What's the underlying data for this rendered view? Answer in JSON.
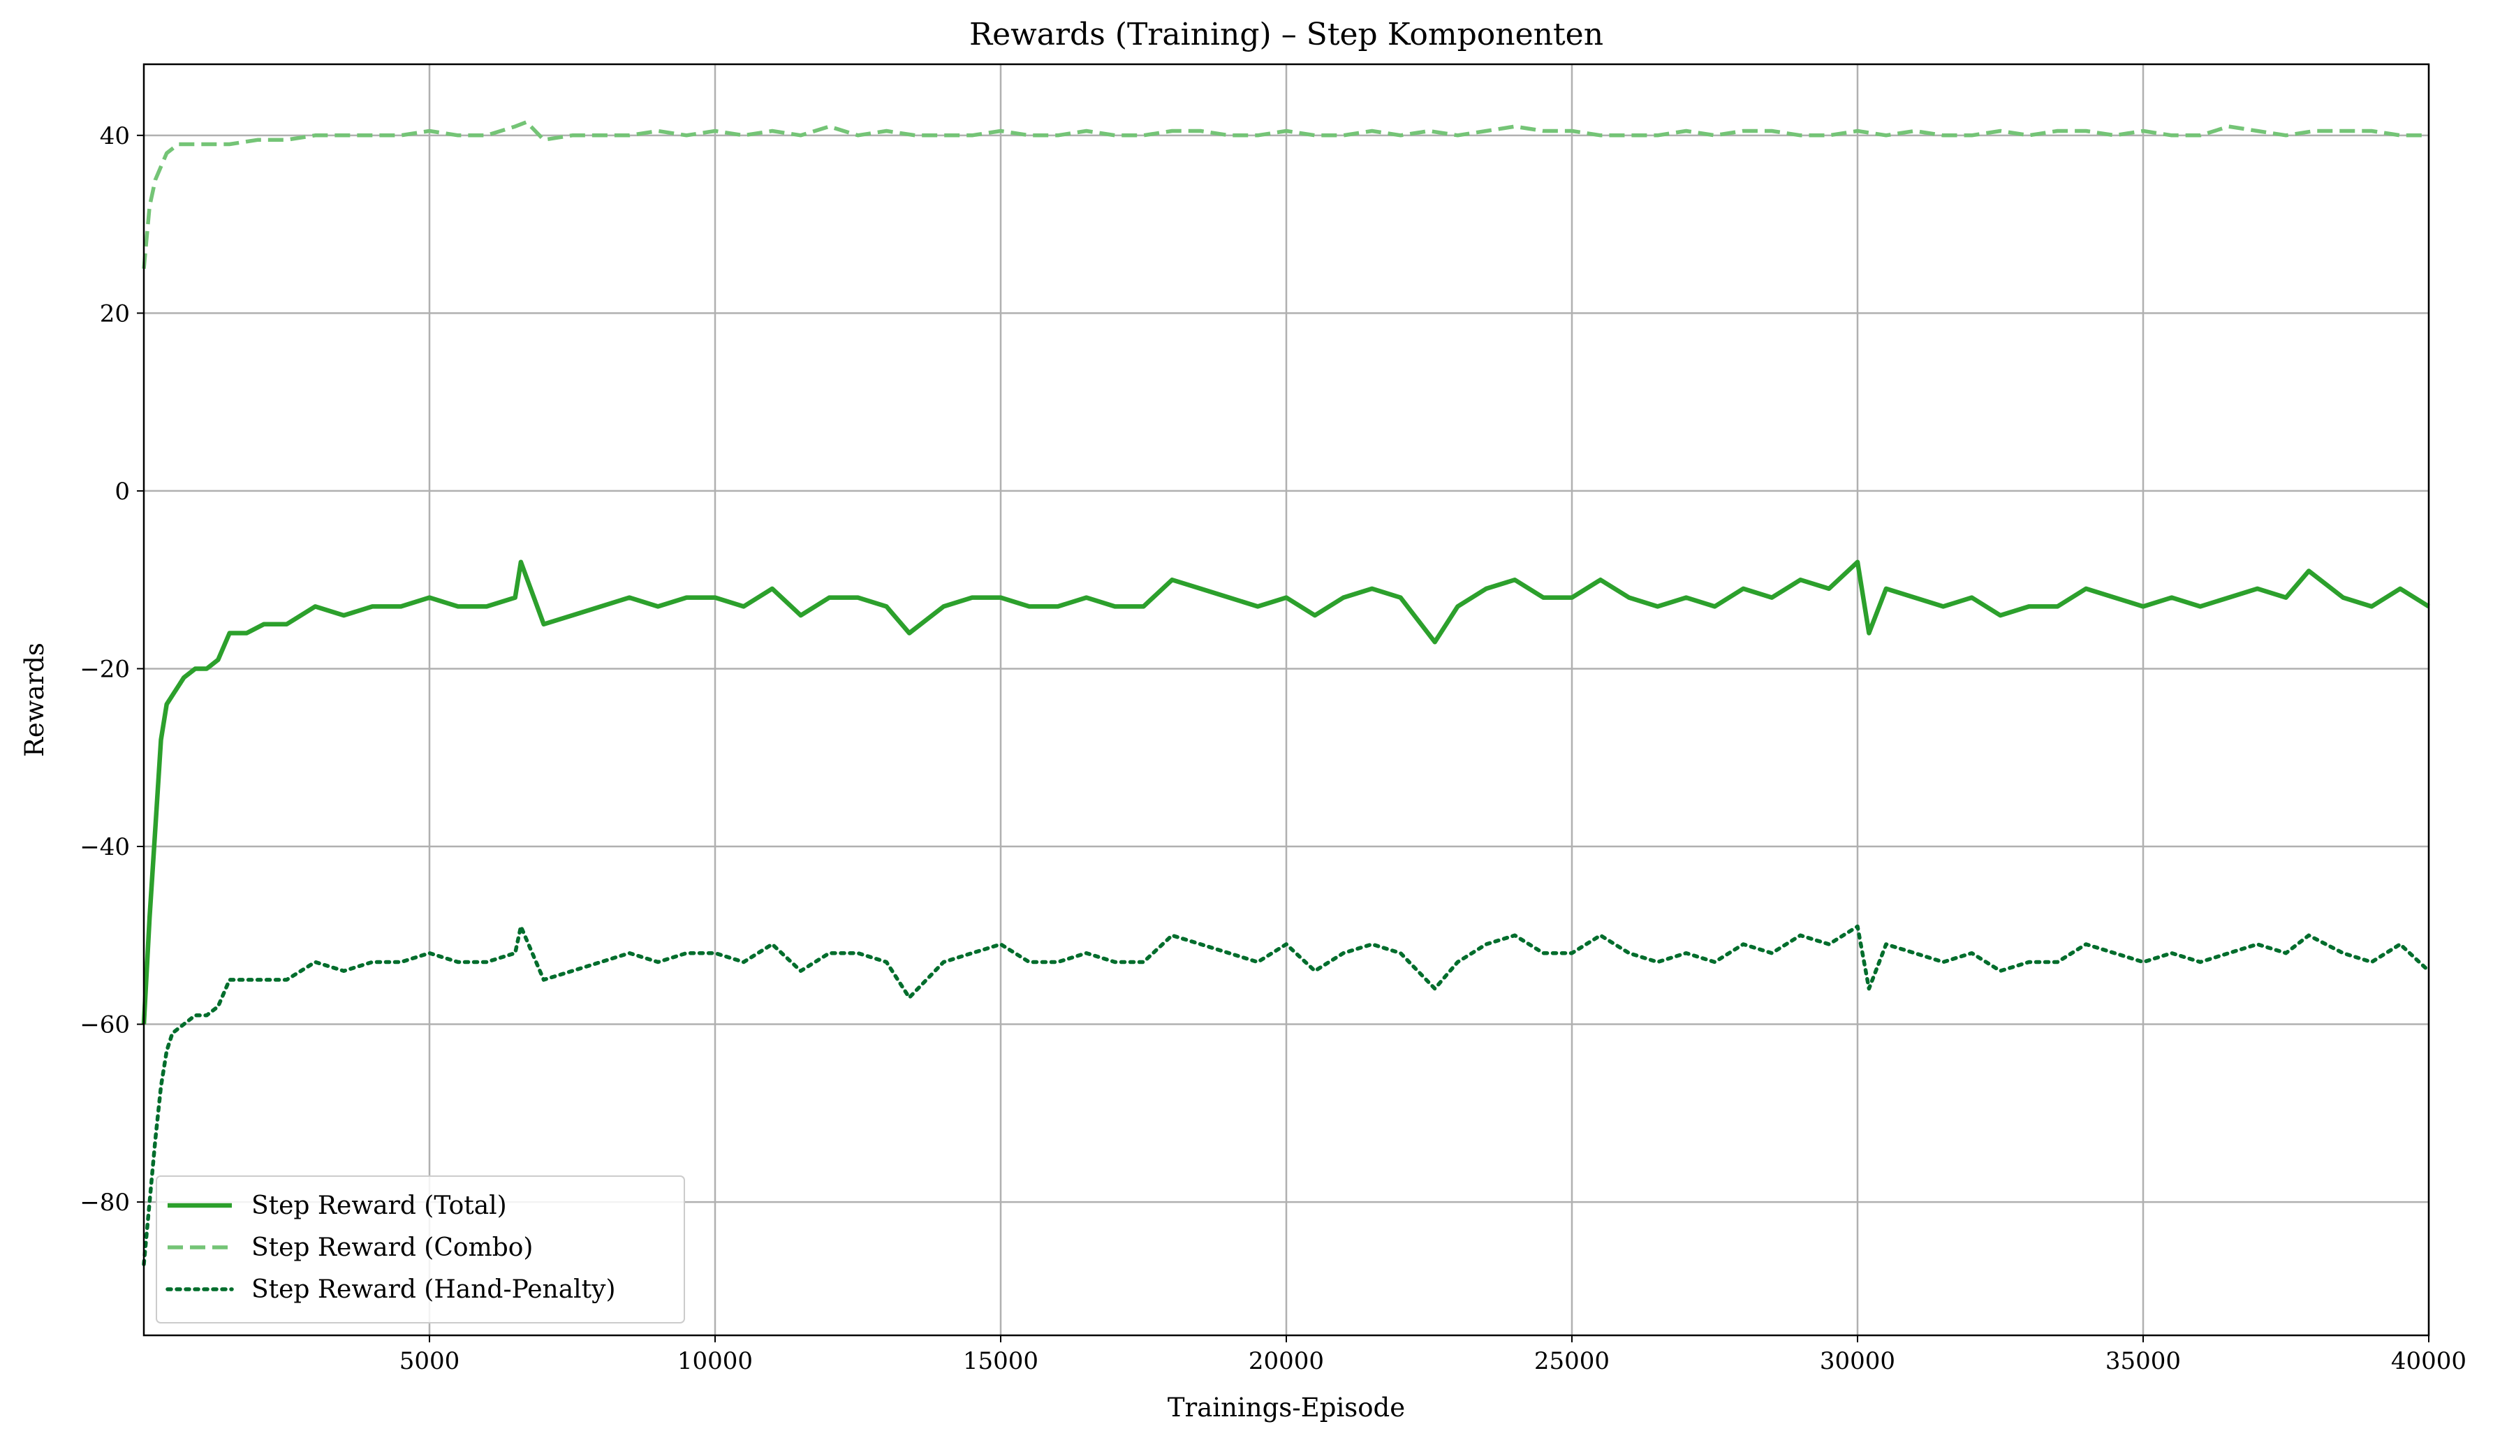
{
  "chart_data": {
    "type": "line",
    "title": "Rewards (Training) – Step Komponenten",
    "xlabel": "Trainings-Episode",
    "ylabel": "Rewards",
    "xlim": [
      0,
      40000
    ],
    "ylim": [
      -95,
      48
    ],
    "xticks": [
      5000,
      10000,
      15000,
      20000,
      25000,
      30000,
      35000,
      40000
    ],
    "yticks": [
      -80,
      -60,
      -40,
      -20,
      0,
      20,
      40
    ],
    "grid": true,
    "legend_position": "lower-left",
    "series": [
      {
        "name": "Step Reward (Total)",
        "color": "#2ca02c",
        "style": "solid",
        "x": [
          0,
          100,
          200,
          300,
          400,
          500,
          700,
          900,
          1100,
          1300,
          1500,
          1800,
          2100,
          2500,
          3000,
          3500,
          4000,
          4500,
          5000,
          5500,
          6000,
          6500,
          6600,
          7000,
          7500,
          8000,
          8500,
          9000,
          9500,
          10000,
          10500,
          11000,
          11500,
          12000,
          12500,
          13000,
          13400,
          14000,
          14500,
          15000,
          15500,
          16000,
          16500,
          17000,
          17500,
          18000,
          18500,
          19000,
          19500,
          20000,
          20500,
          21000,
          21500,
          22000,
          22600,
          23000,
          23500,
          24000,
          24500,
          25000,
          25500,
          26000,
          26500,
          27000,
          27500,
          28000,
          28500,
          29000,
          29500,
          30000,
          30200,
          30500,
          31000,
          31500,
          32000,
          32500,
          33000,
          33500,
          34000,
          34500,
          35000,
          35500,
          36000,
          36500,
          37000,
          37500,
          37900,
          38500,
          39000,
          39500,
          40000
        ],
        "y": [
          -60,
          -48,
          -38,
          -28,
          -24,
          -23,
          -21,
          -20,
          -20,
          -19,
          -16,
          -16,
          -15,
          -15,
          -13,
          -14,
          -13,
          -13,
          -12,
          -13,
          -13,
          -12,
          -8,
          -15,
          -14,
          -13,
          -12,
          -13,
          -12,
          -12,
          -13,
          -11,
          -14,
          -12,
          -12,
          -13,
          -16,
          -13,
          -12,
          -12,
          -13,
          -13,
          -12,
          -13,
          -13,
          -10,
          -11,
          -12,
          -13,
          -12,
          -14,
          -12,
          -11,
          -12,
          -17,
          -13,
          -11,
          -10,
          -12,
          -12,
          -10,
          -12,
          -13,
          -12,
          -13,
          -11,
          -12,
          -10,
          -11,
          -8,
          -16,
          -11,
          -12,
          -13,
          -12,
          -14,
          -13,
          -13,
          -11,
          -12,
          -13,
          -12,
          -13,
          -12,
          -11,
          -12,
          -9,
          -12,
          -13,
          -11,
          -13
        ]
      },
      {
        "name": "Step Reward (Combo)",
        "color": "#74c476",
        "style": "dashed",
        "x": [
          0,
          100,
          200,
          400,
          600,
          800,
          1000,
          1500,
          2000,
          2500,
          3000,
          3500,
          4000,
          4500,
          5000,
          5500,
          6000,
          6500,
          6700,
          7000,
          7500,
          8000,
          8500,
          9000,
          9500,
          10000,
          10500,
          11000,
          11500,
          12000,
          12500,
          13000,
          13500,
          14000,
          14500,
          15000,
          15500,
          16000,
          16500,
          17000,
          17500,
          18000,
          18500,
          19000,
          19500,
          20000,
          20500,
          21000,
          21500,
          22000,
          22500,
          23000,
          23500,
          24000,
          24500,
          25000,
          25500,
          26000,
          26500,
          27000,
          27500,
          28000,
          28500,
          29000,
          29500,
          30000,
          30500,
          31000,
          31500,
          32000,
          32500,
          33000,
          33500,
          34000,
          34500,
          35000,
          35500,
          36000,
          36500,
          37000,
          37500,
          38000,
          38500,
          39000,
          39500,
          40000
        ],
        "y": [
          25,
          32,
          35,
          38,
          39,
          39,
          39,
          39,
          39.5,
          39.5,
          40,
          40,
          40,
          40,
          40.5,
          40,
          40,
          41,
          41.5,
          39.5,
          40,
          40,
          40,
          40.5,
          40,
          40.5,
          40,
          40.5,
          40,
          41,
          40,
          40.5,
          40,
          40,
          40,
          40.5,
          40,
          40,
          40.5,
          40,
          40,
          40.5,
          40.5,
          40,
          40,
          40.5,
          40,
          40,
          40.5,
          40,
          40.5,
          40,
          40.5,
          41,
          40.5,
          40.5,
          40,
          40,
          40,
          40.5,
          40,
          40.5,
          40.5,
          40,
          40,
          40.5,
          40,
          40.5,
          40,
          40,
          40.5,
          40,
          40.5,
          40.5,
          40,
          40.5,
          40,
          40,
          41,
          40.5,
          40,
          40.5,
          40.5,
          40.5,
          40,
          40
        ]
      },
      {
        "name": "Step Reward (Hand-Penalty)",
        "color": "#006d2c",
        "style": "dotted",
        "x": [
          0,
          100,
          200,
          300,
          400,
          500,
          700,
          900,
          1100,
          1300,
          1500,
          1800,
          2100,
          2500,
          3000,
          3500,
          4000,
          4500,
          5000,
          5500,
          6000,
          6500,
          6600,
          7000,
          7500,
          8000,
          8500,
          9000,
          9500,
          10000,
          10500,
          11000,
          11500,
          12000,
          12500,
          13000,
          13400,
          14000,
          14500,
          15000,
          15500,
          16000,
          16500,
          17000,
          17500,
          18000,
          18500,
          19000,
          19500,
          20000,
          20500,
          21000,
          21500,
          22000,
          22600,
          23000,
          23500,
          24000,
          24500,
          25000,
          25500,
          26000,
          26500,
          27000,
          27500,
          28000,
          28500,
          29000,
          29500,
          30000,
          30200,
          30500,
          31000,
          31500,
          32000,
          32500,
          33000,
          33500,
          34000,
          34500,
          35000,
          35500,
          36000,
          36500,
          37000,
          37500,
          37900,
          38500,
          39000,
          39500,
          40000
        ],
        "y": [
          -87,
          -80,
          -73,
          -67,
          -63,
          -61,
          -60,
          -59,
          -59,
          -58,
          -55,
          -55,
          -55,
          -55,
          -53,
          -54,
          -53,
          -53,
          -52,
          -53,
          -53,
          -52,
          -49,
          -55,
          -54,
          -53,
          -52,
          -53,
          -52,
          -52,
          -53,
          -51,
          -54,
          -52,
          -52,
          -53,
          -57,
          -53,
          -52,
          -51,
          -53,
          -53,
          -52,
          -53,
          -53,
          -50,
          -51,
          -52,
          -53,
          -51,
          -54,
          -52,
          -51,
          -52,
          -56,
          -53,
          -51,
          -50,
          -52,
          -52,
          -50,
          -52,
          -53,
          -52,
          -53,
          -51,
          -52,
          -50,
          -51,
          -49,
          -56,
          -51,
          -52,
          -53,
          -52,
          -54,
          -53,
          -53,
          -51,
          -52,
          -53,
          -52,
          -53,
          -52,
          -51,
          -52,
          -50,
          -52,
          -53,
          -51,
          -54
        ]
      }
    ]
  }
}
